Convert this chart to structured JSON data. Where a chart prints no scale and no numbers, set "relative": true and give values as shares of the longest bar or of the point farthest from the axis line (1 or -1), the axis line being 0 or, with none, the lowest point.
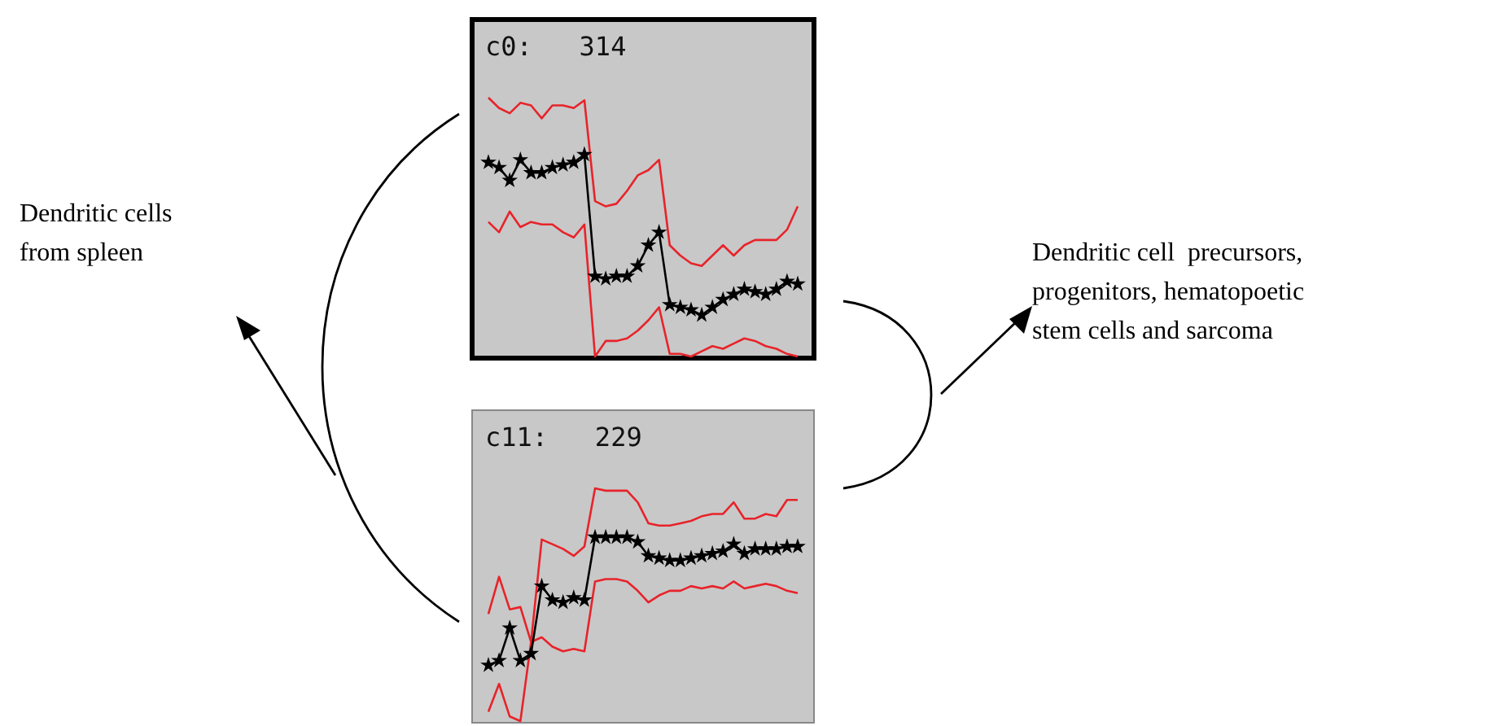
{
  "chart_data": [
    {
      "type": "line",
      "title": "c0:   314",
      "relative": true,
      "tick_labels": false,
      "grid": false,
      "legend": false,
      "categories": [
        null,
        null,
        null,
        null,
        null,
        null,
        null,
        null,
        null,
        null,
        null,
        null,
        null,
        null,
        null,
        null,
        null,
        null,
        null,
        null,
        null,
        null,
        null,
        null,
        null,
        null,
        null,
        null,
        null,
        null
      ],
      "series": [
        {
          "color": "#e8232a",
          "marker": "none",
          "values": [
            1,
            0.96,
            0.94,
            0.98,
            0.97,
            0.92,
            0.97,
            0.97,
            0.96,
            0.99,
            0.6,
            0.58,
            0.59,
            0.64,
            0.7,
            0.72,
            0.76,
            0.43,
            0.39,
            0.36,
            0.35,
            0.39,
            0.43,
            0.39,
            0.43,
            0.45,
            0.45,
            0.45,
            0.49,
            0.58
          ]
        },
        {
          "color": "#e8232a",
          "marker": "none",
          "values": [
            0.52,
            0.48,
            0.56,
            0.5,
            0.52,
            0.51,
            0.51,
            0.48,
            0.46,
            0.51,
            0,
            0.06,
            0.06,
            0.07,
            0.1,
            0.14,
            0.19,
            0.01,
            0.01,
            0,
            0.02,
            0.04,
            0.03,
            0.05,
            0.07,
            0.06,
            0.04,
            0.03,
            0.01,
            0
          ]
        },
        {
          "color": "#000000",
          "marker": "star",
          "values": [
            0.75,
            0.73,
            0.68,
            0.76,
            0.71,
            0.71,
            0.73,
            0.74,
            0.75,
            0.78,
            0.31,
            0.3,
            0.31,
            0.31,
            0.35,
            0.43,
            0.48,
            0.2,
            0.19,
            0.18,
            0.16,
            0.19,
            0.22,
            0.24,
            0.26,
            0.25,
            0.24,
            0.26,
            0.29,
            0.28
          ]
        }
      ],
      "annotations": [
        "Dendritic cells\nfrom spleen",
        "Dendritic cell  precursors,\nprogenitors, hematopoetic\nstem cells and sarcoma"
      ]
    },
    {
      "type": "line",
      "title": "c11:   229",
      "relative": true,
      "tick_labels": false,
      "grid": false,
      "legend": false,
      "categories": [
        null,
        null,
        null,
        null,
        null,
        null,
        null,
        null,
        null,
        null,
        null,
        null,
        null,
        null,
        null,
        null,
        null,
        null,
        null,
        null,
        null,
        null,
        null,
        null,
        null,
        null,
        null,
        null,
        null,
        null
      ],
      "series": [
        {
          "color": "#e8232a",
          "marker": "none",
          "values": [
            0.46,
            0.62,
            0.48,
            0.49,
            0.34,
            0.78,
            0.76,
            0.74,
            0.71,
            0.75,
            1,
            0.99,
            0.99,
            0.99,
            0.94,
            0.85,
            0.84,
            0.84,
            0.85,
            0.86,
            0.88,
            0.89,
            0.89,
            0.94,
            0.87,
            0.87,
            0.89,
            0.88,
            0.95,
            0.95
          ]
        },
        {
          "color": "#e8232a",
          "marker": "none",
          "values": [
            0.04,
            0.16,
            0.02,
            0,
            0.34,
            0.36,
            0.32,
            0.3,
            0.31,
            0.3,
            0.6,
            0.61,
            0.61,
            0.6,
            0.56,
            0.51,
            0.54,
            0.56,
            0.56,
            0.58,
            0.57,
            0.58,
            0.57,
            0.6,
            0.57,
            0.58,
            0.59,
            0.58,
            0.56,
            0.55
          ]
        },
        {
          "color": "#000000",
          "marker": "star",
          "values": [
            0.24,
            0.26,
            0.4,
            0.26,
            0.29,
            0.58,
            0.52,
            0.51,
            0.53,
            0.52,
            0.79,
            0.79,
            0.79,
            0.79,
            0.77,
            0.71,
            0.7,
            0.69,
            0.69,
            0.7,
            0.71,
            0.72,
            0.73,
            0.76,
            0.72,
            0.74,
            0.74,
            0.74,
            0.75,
            0.75
          ]
        }
      ]
    }
  ]
}
